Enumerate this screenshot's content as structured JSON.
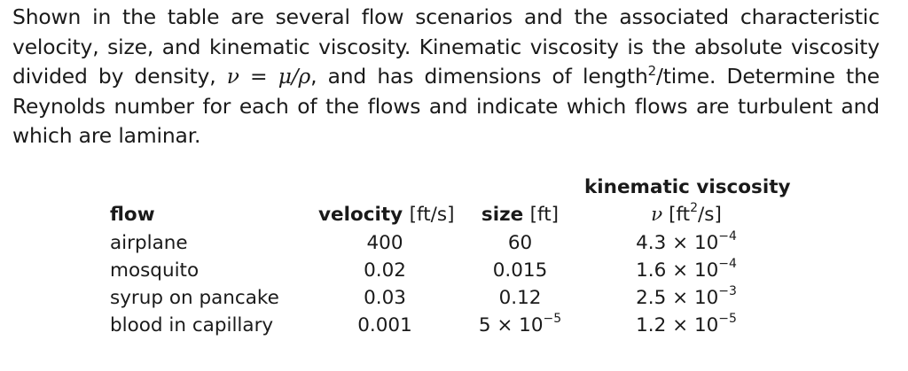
{
  "problem": {
    "text_1": "Shown in the table are several flow scenarios and the associated characteristic velocity, size, and kinematic viscosity. Kinematic viscosity is the absolute viscosity divided by density, ",
    "formula": "ν = μ/ρ",
    "text_2": ", and has dimensions of length",
    "length_exp": "2",
    "text_3": "/time. Determine the Reynolds number for each of the flows and indicate which flows are turbulent and which are laminar."
  },
  "table": {
    "headers": {
      "flow": "flow",
      "velocity": "velocity",
      "velocity_unit": "[ft/s]",
      "size": "size",
      "size_unit": "[ft]",
      "viscosity_line1": "kinematic viscosity",
      "viscosity_symbol": "ν",
      "viscosity_unit_pre": "[ft",
      "viscosity_unit_exp": "2",
      "viscosity_unit_post": "/s]"
    },
    "rows": [
      {
        "flow": "airplane",
        "velocity": "400",
        "size_base": "60",
        "size_exp": "",
        "visc_base": "4.3 × 10",
        "visc_exp": "−4"
      },
      {
        "flow": "mosquito",
        "velocity": "0.02",
        "size_base": "0.015",
        "size_exp": "",
        "visc_base": "1.6 × 10",
        "visc_exp": "−4"
      },
      {
        "flow": "syrup on pancake",
        "velocity": "0.03",
        "size_base": "0.12",
        "size_exp": "",
        "visc_base": "2.5 × 10",
        "visc_exp": "−3"
      },
      {
        "flow": "blood in capillary",
        "velocity": "0.001",
        "size_base": "5 × 10",
        "size_exp": "−5",
        "visc_base": "1.2 × 10",
        "visc_exp": "−5"
      }
    ]
  }
}
